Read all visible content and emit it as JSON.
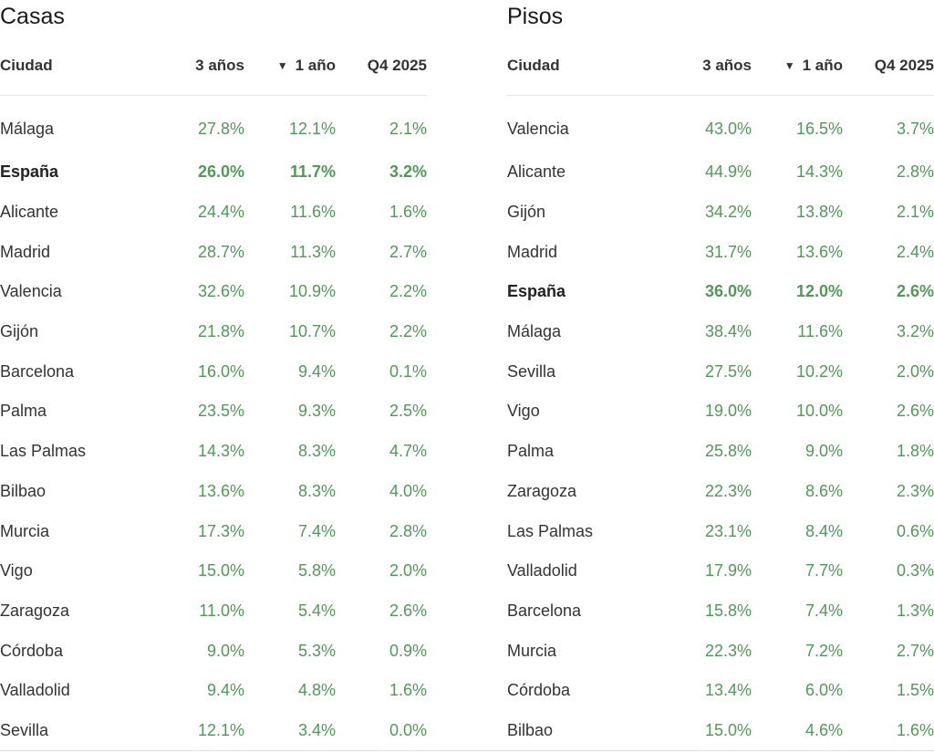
{
  "chart_data": [
    {
      "type": "table",
      "title": "Casas",
      "columns": [
        "Ciudad",
        "3 años",
        "1 año",
        "Q4 2025"
      ],
      "sort": {
        "column": "1 año",
        "direction": "descending",
        "indicator": "▼"
      },
      "highlight_row": "España",
      "rows": [
        [
          "Málaga",
          "27.8%",
          "12.1%",
          "2.1%"
        ],
        [
          "España",
          "26.0%",
          "11.7%",
          "3.2%"
        ],
        [
          "Alicante",
          "24.4%",
          "11.6%",
          "1.6%"
        ],
        [
          "Madrid",
          "28.7%",
          "11.3%",
          "2.7%"
        ],
        [
          "Valencia",
          "32.6%",
          "10.9%",
          "2.2%"
        ],
        [
          "Gijón",
          "21.8%",
          "10.7%",
          "2.2%"
        ],
        [
          "Barcelona",
          "16.0%",
          "9.4%",
          "0.1%"
        ],
        [
          "Palma",
          "23.5%",
          "9.3%",
          "2.5%"
        ],
        [
          "Las Palmas",
          "14.3%",
          "8.3%",
          "4.7%"
        ],
        [
          "Bilbao",
          "13.6%",
          "8.3%",
          "4.0%"
        ],
        [
          "Murcia",
          "17.3%",
          "7.4%",
          "2.8%"
        ],
        [
          "Vigo",
          "15.0%",
          "5.8%",
          "2.0%"
        ],
        [
          "Zaragoza",
          "11.0%",
          "5.4%",
          "2.6%"
        ],
        [
          "Córdoba",
          "9.0%",
          "5.3%",
          "0.9%"
        ],
        [
          "Valladolid",
          "9.4%",
          "4.8%",
          "1.6%"
        ],
        [
          "Sevilla",
          "12.1%",
          "3.4%",
          "0.0%"
        ]
      ]
    },
    {
      "type": "table",
      "title": "Pisos",
      "columns": [
        "Ciudad",
        "3 años",
        "1 año",
        "Q4 2025"
      ],
      "sort": {
        "column": "1 año",
        "direction": "descending",
        "indicator": "▼"
      },
      "highlight_row": "España",
      "rows": [
        [
          "Valencia",
          "43.0%",
          "16.5%",
          "3.7%"
        ],
        [
          "Alicante",
          "44.9%",
          "14.3%",
          "2.8%"
        ],
        [
          "Gijón",
          "34.2%",
          "13.8%",
          "2.1%"
        ],
        [
          "Madrid",
          "31.7%",
          "13.6%",
          "2.4%"
        ],
        [
          "España",
          "36.0%",
          "12.0%",
          "2.6%"
        ],
        [
          "Málaga",
          "38.4%",
          "11.6%",
          "3.2%"
        ],
        [
          "Sevilla",
          "27.5%",
          "10.2%",
          "2.0%"
        ],
        [
          "Vigo",
          "19.0%",
          "10.0%",
          "2.6%"
        ],
        [
          "Palma",
          "25.8%",
          "9.0%",
          "1.8%"
        ],
        [
          "Zaragoza",
          "22.3%",
          "8.6%",
          "2.3%"
        ],
        [
          "Las Palmas",
          "23.1%",
          "8.4%",
          "0.6%"
        ],
        [
          "Valladolid",
          "17.9%",
          "7.7%",
          "0.3%"
        ],
        [
          "Barcelona",
          "15.8%",
          "7.4%",
          "1.3%"
        ],
        [
          "Murcia",
          "22.3%",
          "7.2%",
          "2.7%"
        ],
        [
          "Córdoba",
          "13.4%",
          "6.0%",
          "1.5%"
        ],
        [
          "Bilbao",
          "15.0%",
          "4.6%",
          "1.6%"
        ]
      ]
    }
  ],
  "colors": {
    "value_text": "#4f9a57",
    "label_text": "#333333",
    "rule": "#e6e6e6"
  }
}
